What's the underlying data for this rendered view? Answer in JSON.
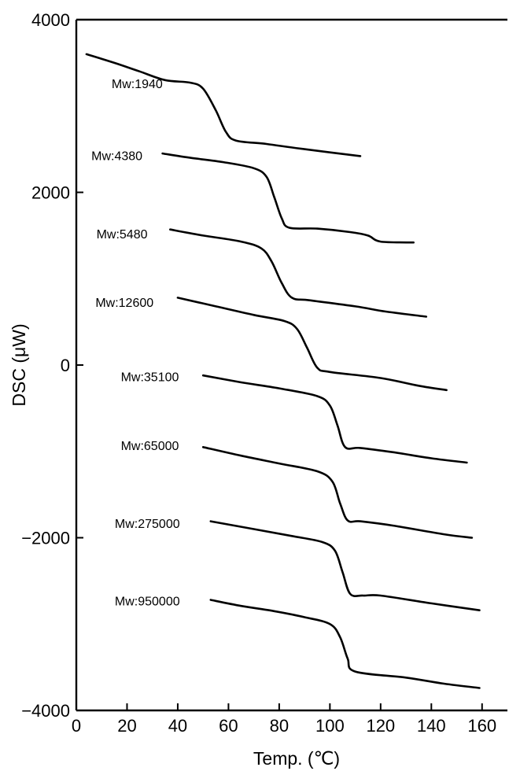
{
  "chart_data": {
    "type": "line",
    "xlabel": "Temp. (℃)",
    "ylabel": "DSC (μW)",
    "xlim": [
      0,
      170
    ],
    "ylim": [
      -4000,
      4000
    ],
    "xticks": [
      0,
      20,
      40,
      60,
      80,
      100,
      120,
      140,
      160
    ],
    "yticks": [
      4000,
      2000,
      0,
      -2000,
      -4000
    ],
    "xtick_labels": [
      "0",
      "20",
      "40",
      "60",
      "80",
      100,
      "120",
      "140",
      "160"
    ],
    "ytick_labels": [
      "4000",
      "2000",
      "0",
      "−2000",
      "−4000"
    ],
    "grid": false,
    "series": [
      {
        "name": "Mw:1940",
        "label_at": [
          24,
          3260
        ],
        "points": [
          [
            4,
            3600
          ],
          [
            15,
            3500
          ],
          [
            25,
            3400
          ],
          [
            35,
            3300
          ],
          [
            45,
            3270
          ],
          [
            50,
            3200
          ],
          [
            55,
            2950
          ],
          [
            59,
            2700
          ],
          [
            63,
            2600
          ],
          [
            75,
            2560
          ],
          [
            90,
            2500
          ],
          [
            112,
            2420
          ]
        ]
      },
      {
        "name": "Mw:4380",
        "label_at": [
          16,
          2430
        ],
        "points": [
          [
            34,
            2450
          ],
          [
            45,
            2400
          ],
          [
            58,
            2350
          ],
          [
            70,
            2280
          ],
          [
            75,
            2180
          ],
          [
            78,
            1950
          ],
          [
            81,
            1700
          ],
          [
            84,
            1590
          ],
          [
            95,
            1580
          ],
          [
            108,
            1540
          ],
          [
            115,
            1500
          ],
          [
            120,
            1430
          ],
          [
            133,
            1420
          ]
        ]
      },
      {
        "name": "Mw:5480",
        "label_at": [
          18,
          1520
        ],
        "points": [
          [
            37,
            1570
          ],
          [
            50,
            1500
          ],
          [
            65,
            1430
          ],
          [
            73,
            1350
          ],
          [
            77,
            1200
          ],
          [
            81,
            950
          ],
          [
            85,
            780
          ],
          [
            92,
            750
          ],
          [
            110,
            680
          ],
          [
            122,
            620
          ],
          [
            138,
            560
          ]
        ]
      },
      {
        "name": "Mw:12600",
        "label_at": [
          19,
          730
        ],
        "points": [
          [
            40,
            780
          ],
          [
            55,
            680
          ],
          [
            70,
            580
          ],
          [
            82,
            510
          ],
          [
            87,
            420
          ],
          [
            91,
            200
          ],
          [
            95,
            -30
          ],
          [
            100,
            -80
          ],
          [
            120,
            -150
          ],
          [
            135,
            -240
          ],
          [
            146,
            -290
          ]
        ]
      },
      {
        "name": "Mw:35100",
        "label_at": [
          29,
          -130
        ],
        "points": [
          [
            50,
            -120
          ],
          [
            65,
            -200
          ],
          [
            80,
            -270
          ],
          [
            95,
            -360
          ],
          [
            100,
            -470
          ],
          [
            103,
            -700
          ],
          [
            106,
            -950
          ],
          [
            112,
            -960
          ],
          [
            125,
            -1010
          ],
          [
            140,
            -1080
          ],
          [
            154,
            -1130
          ]
        ]
      },
      {
        "name": "Mw:65000",
        "label_at": [
          29,
          -930
        ],
        "points": [
          [
            50,
            -950
          ],
          [
            65,
            -1050
          ],
          [
            80,
            -1140
          ],
          [
            95,
            -1230
          ],
          [
            101,
            -1350
          ],
          [
            104,
            -1600
          ],
          [
            107,
            -1800
          ],
          [
            112,
            -1810
          ],
          [
            125,
            -1860
          ],
          [
            145,
            -1960
          ],
          [
            156,
            -2000
          ]
        ]
      },
      {
        "name": "Mw:275000",
        "label_at": [
          28,
          -1830
        ],
        "points": [
          [
            53,
            -1810
          ],
          [
            70,
            -1900
          ],
          [
            85,
            -1980
          ],
          [
            97,
            -2050
          ],
          [
            102,
            -2150
          ],
          [
            105,
            -2400
          ],
          [
            108,
            -2650
          ],
          [
            113,
            -2670
          ],
          [
            120,
            -2670
          ],
          [
            140,
            -2760
          ],
          [
            159,
            -2840
          ]
        ]
      },
      {
        "name": "Mw:950000",
        "label_at": [
          28,
          -2730
        ],
        "points": [
          [
            53,
            -2720
          ],
          [
            65,
            -2790
          ],
          [
            78,
            -2850
          ],
          [
            90,
            -2920
          ],
          [
            100,
            -3000
          ],
          [
            104,
            -3150
          ],
          [
            107,
            -3400
          ],
          [
            110,
            -3550
          ],
          [
            130,
            -3620
          ],
          [
            145,
            -3690
          ],
          [
            159,
            -3740
          ]
        ]
      }
    ]
  }
}
